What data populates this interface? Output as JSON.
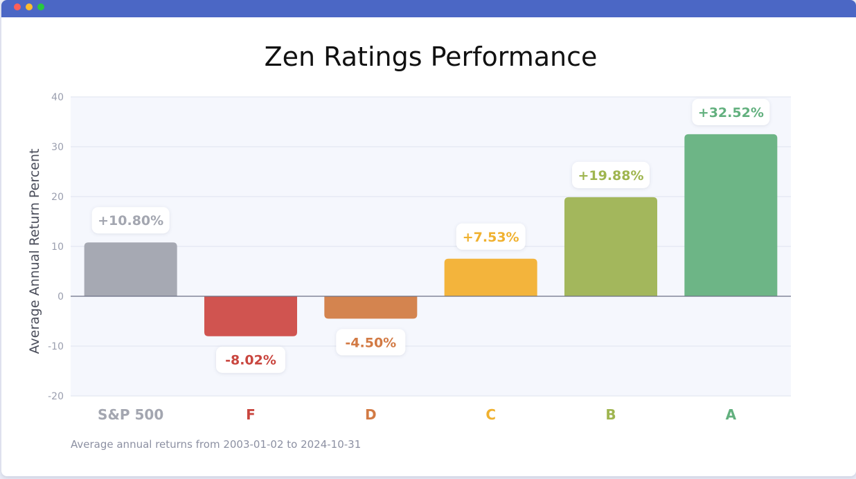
{
  "window": {
    "title": ""
  },
  "chart_data": {
    "type": "bar",
    "title": "Zen Ratings Performance",
    "ylabel": "Average Annual Return Percent",
    "xlabel": "",
    "ylim": [
      -20,
      40
    ],
    "yticks": [
      -20,
      -10,
      0,
      10,
      20,
      30,
      40
    ],
    "grid": true,
    "categories": [
      "S&P 500",
      "F",
      "D",
      "C",
      "B",
      "A"
    ],
    "values": [
      10.8,
      -8.02,
      -4.5,
      7.53,
      19.88,
      32.52
    ],
    "data_labels": [
      "+10.80%",
      "-8.02%",
      "-4.50%",
      "+7.53%",
      "+19.88%",
      "+32.52%"
    ],
    "colors": [
      "#a6a9b3",
      "#d05450",
      "#d4844f",
      "#f3b43c",
      "#a3b75c",
      "#6db586"
    ],
    "label_colors": [
      "#a3a6b0",
      "#c9463f",
      "#d27a44",
      "#f0b12f",
      "#9fb54f",
      "#62b07e"
    ],
    "footnote": "Average annual returns from 2003-01-02 to 2024-10-31"
  }
}
